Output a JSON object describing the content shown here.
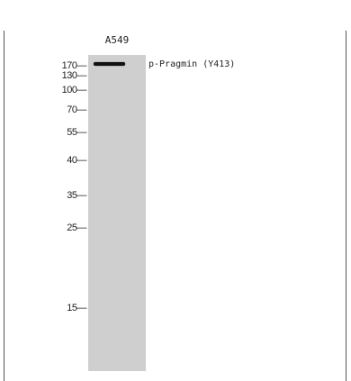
{
  "lane": {
    "label": "A549"
  },
  "band": {
    "label": "p-Pragmin (Y413)"
  },
  "markers": [
    {
      "label": "170—"
    },
    {
      "label": "130—"
    },
    {
      "label": "100—"
    },
    {
      "label": "70—"
    },
    {
      "label": "55—"
    },
    {
      "label": "40—"
    },
    {
      "label": "35—"
    },
    {
      "label": "25—"
    },
    {
      "label": "15—"
    }
  ]
}
